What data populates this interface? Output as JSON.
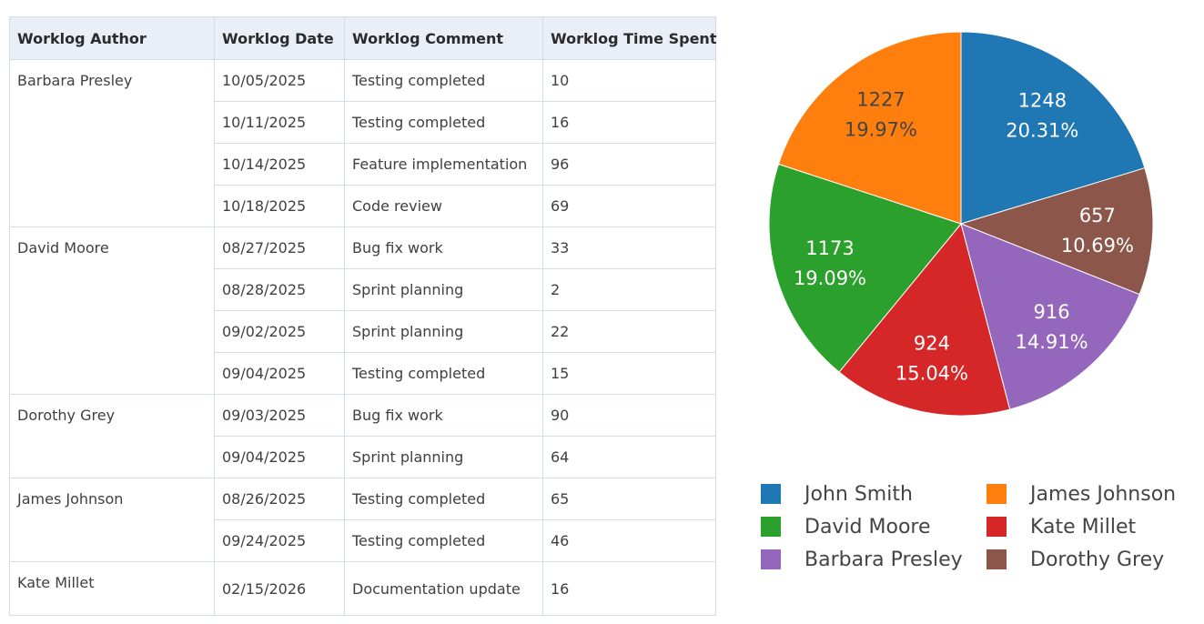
{
  "table": {
    "columns": [
      "Worklog Author",
      "Worklog Date",
      "Worklog Comment",
      "Worklog Time Spent"
    ],
    "groups": [
      {
        "author": "Barbara Presley",
        "entries": [
          {
            "date": "10/05/2025",
            "comment": "Testing completed",
            "time": "10"
          },
          {
            "date": "10/11/2025",
            "comment": "Testing completed",
            "time": "16"
          },
          {
            "date": "10/14/2025",
            "comment": "Feature implementation",
            "time": "96"
          },
          {
            "date": "10/18/2025",
            "comment": "Code review",
            "time": "69"
          }
        ]
      },
      {
        "author": "David Moore",
        "entries": [
          {
            "date": "08/27/2025",
            "comment": "Bug fix work",
            "time": "33"
          },
          {
            "date": "08/28/2025",
            "comment": "Sprint planning",
            "time": "2"
          },
          {
            "date": "09/02/2025",
            "comment": "Sprint planning",
            "time": "22"
          },
          {
            "date": "09/04/2025",
            "comment": "Testing completed",
            "time": "15"
          }
        ]
      },
      {
        "author": "Dorothy Grey",
        "entries": [
          {
            "date": "09/03/2025",
            "comment": "Bug fix work",
            "time": "90"
          },
          {
            "date": "09/04/2025",
            "comment": "Sprint planning",
            "time": "64"
          }
        ]
      },
      {
        "author": "James Johnson",
        "entries": [
          {
            "date": "08/26/2025",
            "comment": "Testing completed",
            "time": "65"
          },
          {
            "date": "09/24/2025",
            "comment": "Testing completed",
            "time": "46"
          }
        ]
      },
      {
        "author": "Kate Millet",
        "entries": [
          {
            "date": "02/15/2026",
            "comment": "Documentation update",
            "time": "16"
          }
        ]
      }
    ]
  },
  "chart_data": {
    "type": "pie",
    "title": "",
    "legend_position": "bottom",
    "slices": [
      {
        "name": "John Smith",
        "value": 1248,
        "percent": "20.31%",
        "color": "#1f77b4",
        "label_color": "#ffffff"
      },
      {
        "name": "Dorothy Grey",
        "value": 657,
        "percent": "10.69%",
        "color": "#8c564b",
        "label_color": "#ffffff"
      },
      {
        "name": "Barbara Presley",
        "value": 916,
        "percent": "14.91%",
        "color": "#9467bd",
        "label_color": "#ffffff"
      },
      {
        "name": "Kate Millet",
        "value": 924,
        "percent": "15.04%",
        "color": "#d62728",
        "label_color": "#ffffff"
      },
      {
        "name": "David Moore",
        "value": 1173,
        "percent": "19.09%",
        "color": "#2ca02c",
        "label_color": "#ffffff"
      },
      {
        "name": "James Johnson",
        "value": 1227,
        "percent": "19.97%",
        "color": "#ff7f0e",
        "label_color": "#444444"
      }
    ],
    "legend": [
      {
        "name": "John Smith",
        "color": "#1f77b4"
      },
      {
        "name": "James Johnson",
        "color": "#ff7f0e"
      },
      {
        "name": "David Moore",
        "color": "#2ca02c"
      },
      {
        "name": "Kate Millet",
        "color": "#d62728"
      },
      {
        "name": "Barbara Presley",
        "color": "#9467bd"
      },
      {
        "name": "Dorothy Grey",
        "color": "#8c564b"
      }
    ]
  }
}
